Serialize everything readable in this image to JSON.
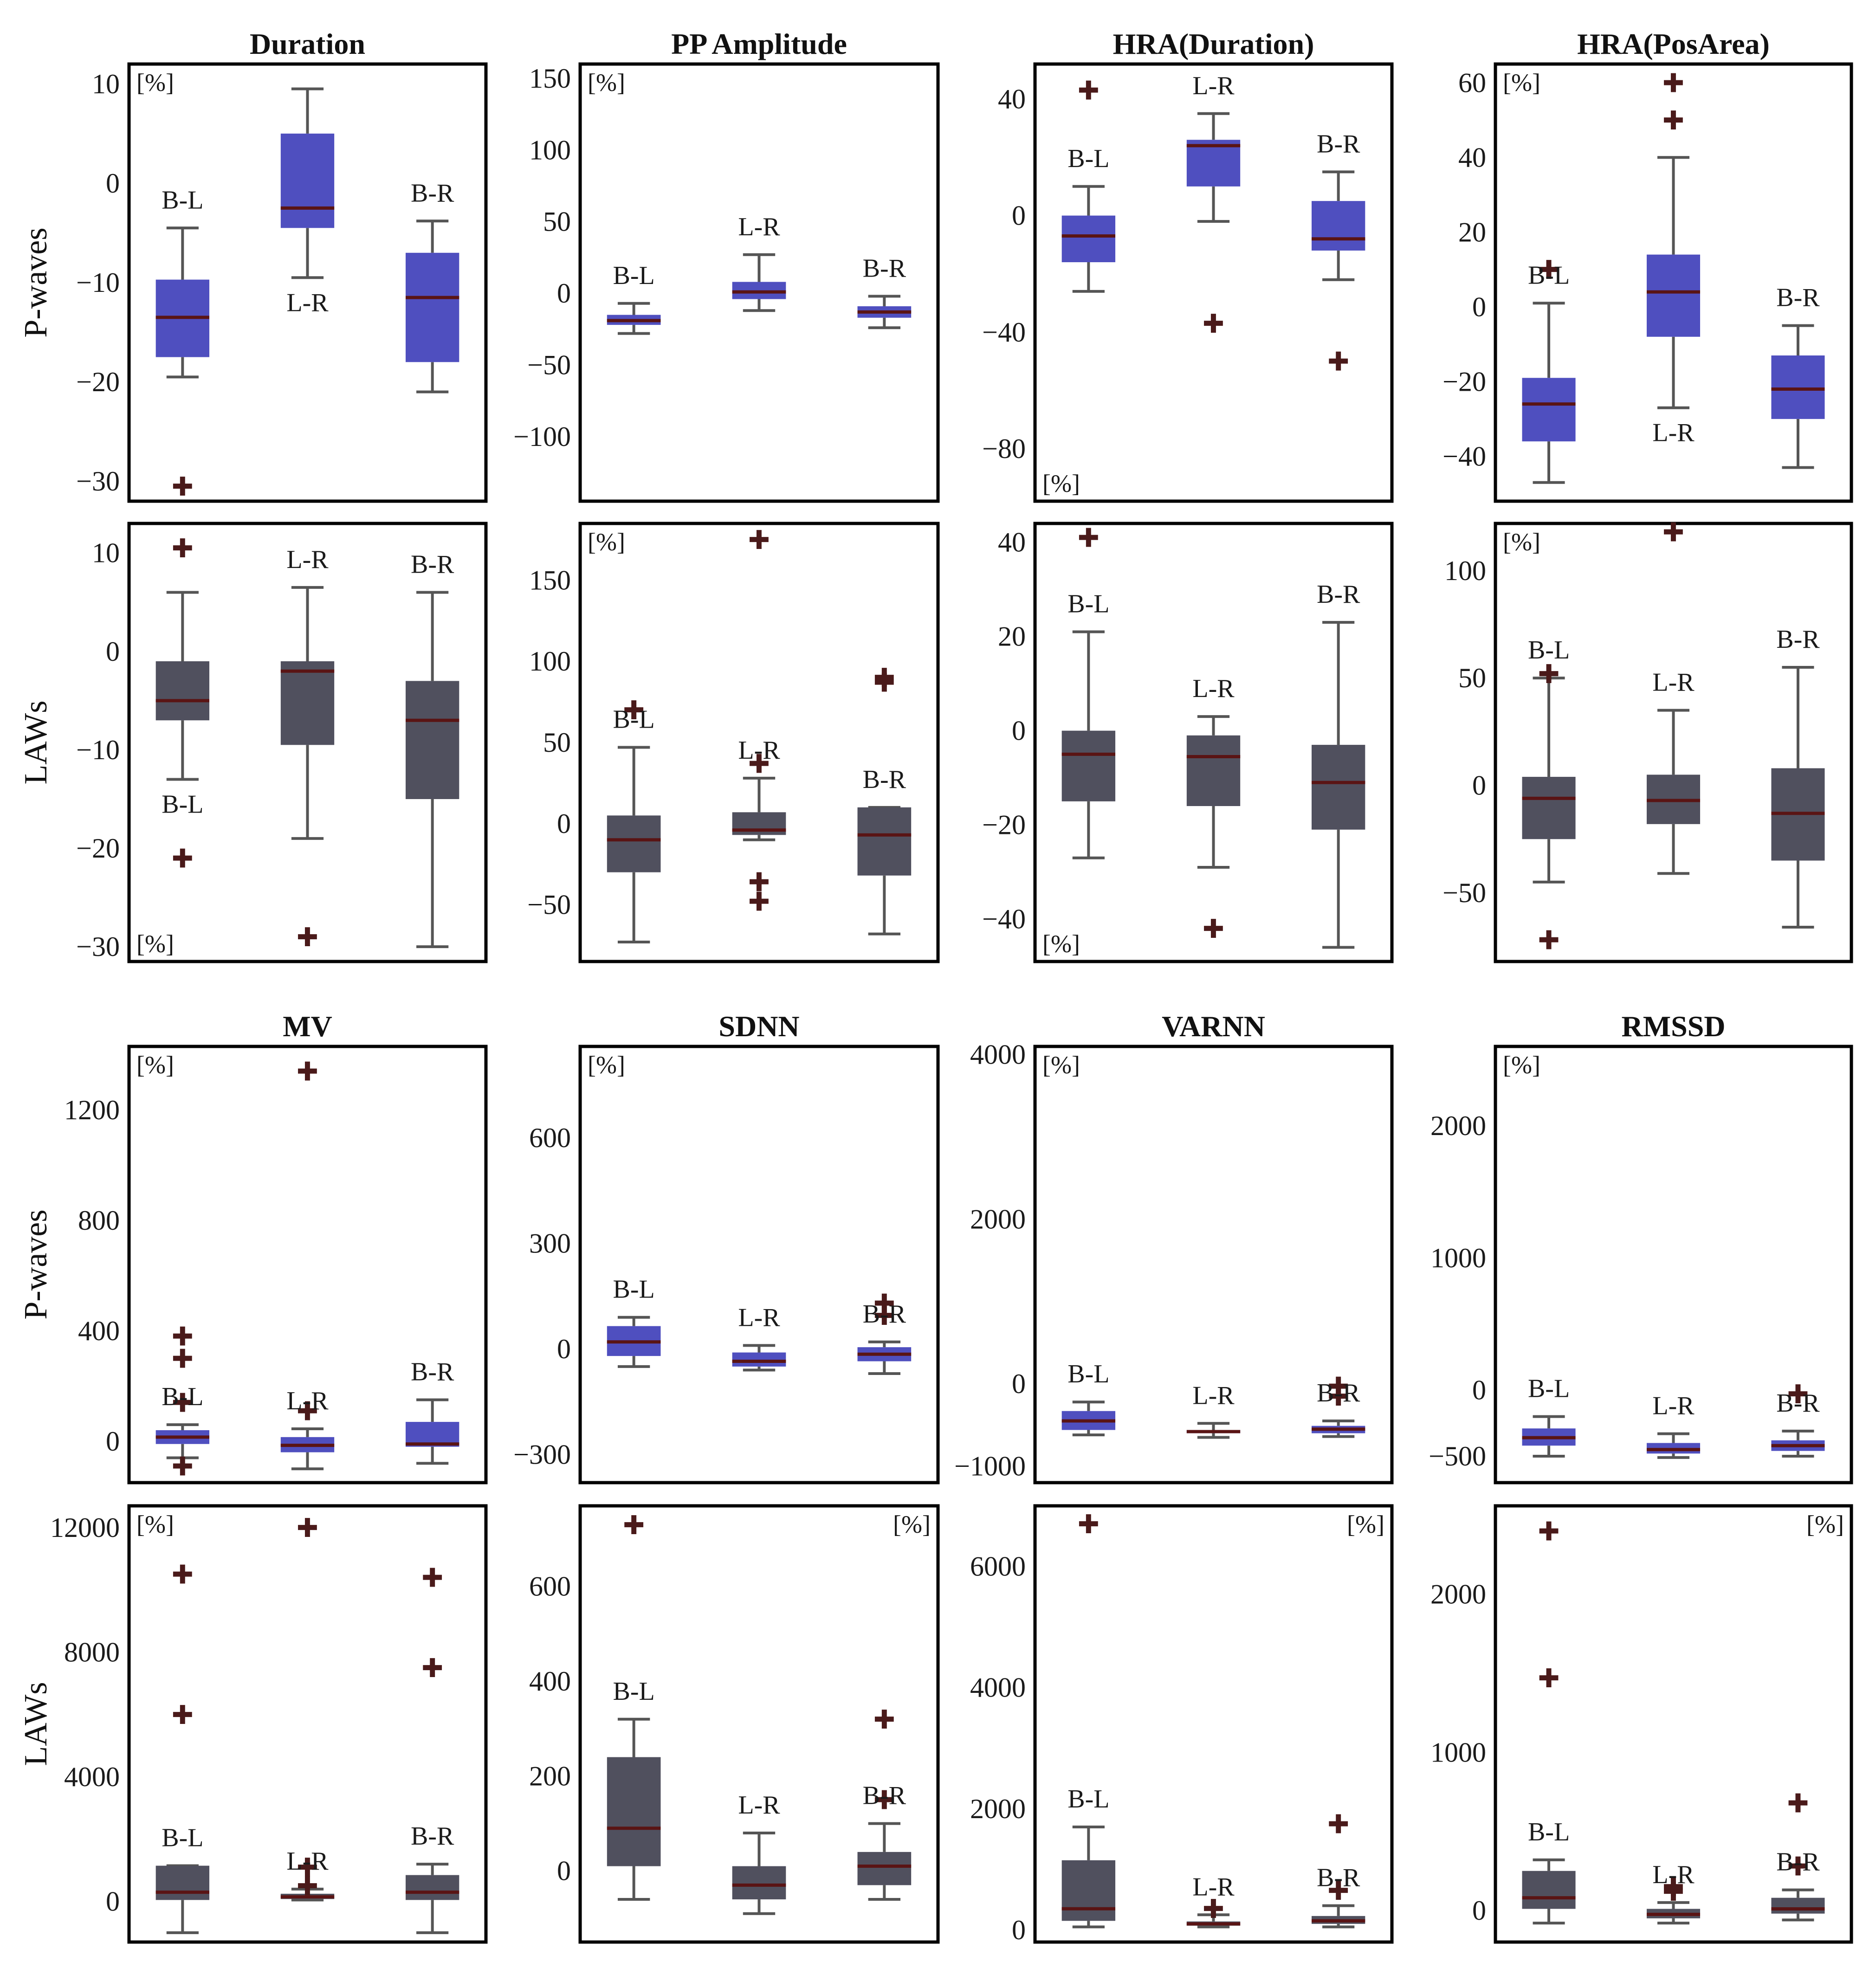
{
  "colors": {
    "pwaves_box": "#4f4fbf",
    "laws_box": "#50505e",
    "median": "#5a1414",
    "whisker": "#555555",
    "outlier": "#4a1a1a"
  },
  "chart_data": [
    {
      "type": "box",
      "group": "top",
      "row": "P-waves",
      "title": "Duration",
      "ylabel": "P-waves",
      "unit": "[%]",
      "ylim": [
        -32,
        12
      ],
      "yticks": [
        10,
        0,
        -10,
        -20,
        -30
      ],
      "boxes": [
        {
          "name": "B-L",
          "whislo": -19.5,
          "q1": -17.5,
          "med": -13.5,
          "q3": -9.7,
          "whishi": -4.5,
          "fliers": [
            -30.5
          ]
        },
        {
          "name": "L-R",
          "whislo": -9.5,
          "q1": -4.5,
          "med": -2.5,
          "q3": 5,
          "whishi": 9.5,
          "fliers": []
        },
        {
          "name": "B-R",
          "whislo": -21,
          "q1": -18,
          "med": -11.5,
          "q3": -7,
          "whishi": -3.8,
          "fliers": []
        }
      ]
    },
    {
      "type": "box",
      "group": "top",
      "row": "P-waves",
      "title": "PP Amplitude",
      "unit": "[%]",
      "ylim": [
        -145,
        160
      ],
      "yticks": [
        150,
        100,
        50,
        0,
        -50,
        -100
      ],
      "boxes": [
        {
          "name": "B-L",
          "whislo": -28,
          "q1": -22,
          "med": -19,
          "q3": -15,
          "whishi": -7,
          "fliers": []
        },
        {
          "name": "L-R",
          "whislo": -12,
          "q1": -4,
          "med": 1,
          "q3": 8,
          "whishi": 27,
          "fliers": []
        },
        {
          "name": "B-R",
          "whislo": -24,
          "q1": -17,
          "med": -13,
          "q3": -9,
          "whishi": -2,
          "fliers": []
        }
      ]
    },
    {
      "type": "box",
      "group": "top",
      "row": "P-waves",
      "title": "HRA(Duration)",
      "unit": "[%]",
      "ylim": [
        -98,
        52
      ],
      "yticks": [
        40,
        0,
        -40,
        -80
      ],
      "boxes": [
        {
          "name": "B-L",
          "whislo": -26,
          "q1": -16,
          "med": -7,
          "q3": 0,
          "whishi": 10,
          "fliers": [
            43
          ]
        },
        {
          "name": "L-R",
          "whislo": -2,
          "q1": 10,
          "med": 24,
          "q3": 26,
          "whishi": 35,
          "fliers": [
            -37
          ]
        },
        {
          "name": "B-R",
          "whislo": -22,
          "q1": -12,
          "med": -8,
          "q3": 5,
          "whishi": 15,
          "fliers": [
            -50
          ]
        }
      ]
    },
    {
      "type": "box",
      "group": "top",
      "row": "P-waves",
      "title": "HRA(PosArea)",
      "unit": "[%]",
      "ylim": [
        -52,
        65
      ],
      "yticks": [
        60,
        40,
        20,
        0,
        -20,
        -40
      ],
      "boxes": [
        {
          "name": "B-L",
          "whislo": -47,
          "q1": -36,
          "med": -26,
          "q3": -19,
          "whishi": 1,
          "fliers": [
            10
          ]
        },
        {
          "name": "L-R",
          "whislo": -27,
          "q1": -8,
          "med": 4,
          "q3": 14,
          "whishi": 40,
          "fliers": [
            50,
            60
          ]
        },
        {
          "name": "B-R",
          "whislo": -43,
          "q1": -30,
          "med": -22,
          "q3": -13,
          "whishi": -5,
          "fliers": []
        }
      ]
    },
    {
      "type": "box",
      "group": "top",
      "row": "LAWs",
      "ylabel": "LAWs",
      "unit": "[%]",
      "ylim": [
        -31.5,
        13
      ],
      "yticks": [
        10,
        0,
        -10,
        -20,
        -30
      ],
      "boxes": [
        {
          "name": "B-L",
          "whislo": -13,
          "q1": -7,
          "med": -5,
          "q3": -1,
          "whishi": 6,
          "fliers": [
            10.5,
            -21
          ]
        },
        {
          "name": "L-R",
          "whislo": -19,
          "q1": -9.5,
          "med": -2,
          "q3": -1,
          "whishi": 6.5,
          "fliers": [
            -29
          ]
        },
        {
          "name": "B-R",
          "whislo": -30,
          "q1": -15,
          "med": -7,
          "q3": -3,
          "whishi": 6,
          "fliers": []
        }
      ]
    },
    {
      "type": "box",
      "group": "top",
      "row": "LAWs",
      "unit": "[%]",
      "ylim": [
        -85,
        185
      ],
      "yticks": [
        150,
        100,
        50,
        0,
        -50
      ],
      "boxes": [
        {
          "name": "B-L",
          "whislo": -73,
          "q1": -30,
          "med": -10,
          "q3": 5,
          "whishi": 47,
          "fliers": [
            70
          ]
        },
        {
          "name": "L-R",
          "whislo": -10,
          "q1": -7,
          "med": -4,
          "q3": 7,
          "whishi": 28,
          "fliers": [
            175,
            37,
            -36,
            -48
          ]
        },
        {
          "name": "B-R",
          "whislo": -68,
          "q1": -32,
          "med": -7,
          "q3": 10,
          "whishi": 10,
          "fliers": [
            90,
            87
          ]
        }
      ]
    },
    {
      "type": "box",
      "group": "top",
      "row": "LAWs",
      "unit": "[%]",
      "ylim": [
        -49,
        44
      ],
      "yticks": [
        40,
        20,
        0,
        -20,
        -40
      ],
      "boxes": [
        {
          "name": "B-L",
          "whislo": -27,
          "q1": -15,
          "med": -5,
          "q3": 0,
          "whishi": 21,
          "fliers": [
            41
          ]
        },
        {
          "name": "L-R",
          "whislo": -29,
          "q1": -16,
          "med": -5.5,
          "q3": -1,
          "whishi": 3,
          "fliers": [
            -42
          ]
        },
        {
          "name": "B-R",
          "whislo": -46,
          "q1": -21,
          "med": -11,
          "q3": -3,
          "whishi": 23,
          "fliers": []
        }
      ]
    },
    {
      "type": "box",
      "group": "top",
      "row": "LAWs",
      "unit": "[%]",
      "ylim": [
        -82,
        122
      ],
      "yticks": [
        100,
        50,
        0,
        -50
      ],
      "boxes": [
        {
          "name": "B-L",
          "whislo": -45,
          "q1": -25,
          "med": -6,
          "q3": 4,
          "whishi": 50,
          "fliers": [
            -72,
            52
          ]
        },
        {
          "name": "L-R",
          "whislo": -41,
          "q1": -18,
          "med": -7,
          "q3": 5,
          "whishi": 35,
          "fliers": [
            118
          ]
        },
        {
          "name": "B-R",
          "whislo": -66,
          "q1": -35,
          "med": -13,
          "q3": 8,
          "whishi": 55,
          "fliers": []
        }
      ]
    },
    {
      "type": "box",
      "group": "bottom",
      "row": "P-waves",
      "title": "MV",
      "ylabel": "P-waves",
      "unit": "[%]",
      "ylim": [
        -150,
        1430
      ],
      "yticks": [
        1200,
        800,
        400,
        0
      ],
      "boxes": [
        {
          "name": "B-L",
          "whislo": -60,
          "q1": -10,
          "med": 15,
          "q3": 40,
          "whishi": 60,
          "fliers": [
            380,
            300,
            140,
            -90
          ]
        },
        {
          "name": "L-R",
          "whislo": -100,
          "q1": -40,
          "med": -15,
          "q3": 15,
          "whishi": 45,
          "fliers": [
            1340,
            110
          ]
        },
        {
          "name": "B-R",
          "whislo": -80,
          "q1": -20,
          "med": -10,
          "q3": 70,
          "whishi": 150,
          "fliers": []
        }
      ]
    },
    {
      "type": "box",
      "group": "bottom",
      "row": "P-waves",
      "title": "SDNN",
      "unit": "[%]",
      "ylim": [
        -380,
        860
      ],
      "yticks": [
        600,
        300,
        0,
        -300
      ],
      "boxes": [
        {
          "name": "B-L",
          "whislo": -50,
          "q1": -20,
          "med": 20,
          "q3": 65,
          "whishi": 90,
          "fliers": []
        },
        {
          "name": "L-R",
          "whislo": -60,
          "q1": -50,
          "med": -35,
          "q3": -10,
          "whishi": 10,
          "fliers": []
        },
        {
          "name": "B-R",
          "whislo": -70,
          "q1": -35,
          "med": -15,
          "q3": 5,
          "whishi": 20,
          "fliers": [
            130,
            95
          ]
        }
      ]
    },
    {
      "type": "box",
      "group": "bottom",
      "row": "P-waves",
      "title": "VARNN",
      "unit": "[%]",
      "ylim": [
        -1200,
        4100
      ],
      "yticks": [
        4000,
        2000,
        0,
        -1000
      ],
      "boxes": [
        {
          "name": "B-L",
          "whislo": -620,
          "q1": -560,
          "med": -450,
          "q3": -330,
          "whishi": -220,
          "fliers": []
        },
        {
          "name": "L-R",
          "whislo": -650,
          "q1": -600,
          "med": -580,
          "q3": -560,
          "whishi": -480,
          "fliers": []
        },
        {
          "name": "B-R",
          "whislo": -640,
          "q1": -600,
          "med": -550,
          "q3": -510,
          "whishi": -450,
          "fliers": [
            -30,
            -150
          ]
        }
      ]
    },
    {
      "type": "box",
      "group": "bottom",
      "row": "P-waves",
      "title": "RMSSD",
      "unit": "[%]",
      "ylim": [
        -700,
        2600
      ],
      "yticks": [
        2000,
        1000,
        0,
        -500
      ],
      "boxes": [
        {
          "name": "B-L",
          "whislo": -500,
          "q1": -420,
          "med": -360,
          "q3": -290,
          "whishi": -200,
          "fliers": []
        },
        {
          "name": "L-R",
          "whislo": -510,
          "q1": -480,
          "med": -450,
          "q3": -400,
          "whishi": -330,
          "fliers": []
        },
        {
          "name": "B-R",
          "whislo": -500,
          "q1": -460,
          "med": -420,
          "q3": -380,
          "whishi": -310,
          "fliers": [
            -30
          ]
        }
      ]
    },
    {
      "type": "box",
      "group": "bottom",
      "row": "LAWs",
      "ylabel": "LAWs",
      "unit": "[%]",
      "ylim": [
        -1300,
        12700
      ],
      "yticks": [
        12000,
        8000,
        4000,
        0
      ],
      "boxes": [
        {
          "name": "B-L",
          "whislo": -1000,
          "q1": 50,
          "med": 300,
          "q3": 1150,
          "whishi": 1150,
          "fliers": [
            10500,
            6000
          ]
        },
        {
          "name": "L-R",
          "whislo": 50,
          "q1": 80,
          "med": 150,
          "q3": 250,
          "whishi": 400,
          "fliers": [
            12000,
            1100,
            500
          ]
        },
        {
          "name": "B-R",
          "whislo": -1000,
          "q1": 50,
          "med": 300,
          "q3": 850,
          "whishi": 1200,
          "fliers": [
            10400,
            7500
          ]
        }
      ]
    },
    {
      "type": "box",
      "group": "bottom",
      "row": "LAWs",
      "unit": "[%]",
      "ylim": [
        -150,
        770
      ],
      "yticks": [
        600,
        400,
        200,
        0
      ],
      "boxes": [
        {
          "name": "B-L",
          "whislo": -60,
          "q1": 10,
          "med": 90,
          "q3": 240,
          "whishi": 320,
          "fliers": [
            730
          ]
        },
        {
          "name": "L-R",
          "whislo": -90,
          "q1": -60,
          "med": -30,
          "q3": 10,
          "whishi": 80,
          "fliers": []
        },
        {
          "name": "B-R",
          "whislo": -60,
          "q1": -30,
          "med": 10,
          "q3": 40,
          "whishi": 100,
          "fliers": [
            320,
            150
          ]
        }
      ]
    },
    {
      "type": "box",
      "group": "bottom",
      "row": "LAWs",
      "unit": "[%]",
      "ylim": [
        -200,
        7000
      ],
      "yticks": [
        6000,
        4000,
        2000,
        0
      ],
      "boxes": [
        {
          "name": "B-L",
          "whislo": 50,
          "q1": 150,
          "med": 350,
          "q3": 1150,
          "whishi": 1700,
          "fliers": [
            6700
          ]
        },
        {
          "name": "L-R",
          "whislo": 50,
          "q1": 70,
          "med": 100,
          "q3": 140,
          "whishi": 250,
          "fliers": [
            350
          ]
        },
        {
          "name": "B-R",
          "whislo": 50,
          "q1": 100,
          "med": 150,
          "q3": 230,
          "whishi": 400,
          "fliers": [
            1750,
            650
          ]
        }
      ]
    },
    {
      "type": "box",
      "group": "bottom",
      "row": "LAWs",
      "unit": "[%]",
      "ylim": [
        -200,
        2560
      ],
      "yticks": [
        2000,
        1000,
        0
      ],
      "boxes": [
        {
          "name": "B-L",
          "whislo": -80,
          "q1": 10,
          "med": 80,
          "q3": 250,
          "whishi": 320,
          "fliers": [
            2400,
            1470
          ]
        },
        {
          "name": "L-R",
          "whislo": -80,
          "q1": -50,
          "med": -25,
          "q3": 10,
          "whishi": 50,
          "fliers": [
            150,
            120
          ]
        },
        {
          "name": "B-R",
          "whislo": -60,
          "q1": -20,
          "med": 10,
          "q3": 80,
          "whishi": 130,
          "fliers": [
            680,
            280
          ]
        }
      ]
    }
  ]
}
